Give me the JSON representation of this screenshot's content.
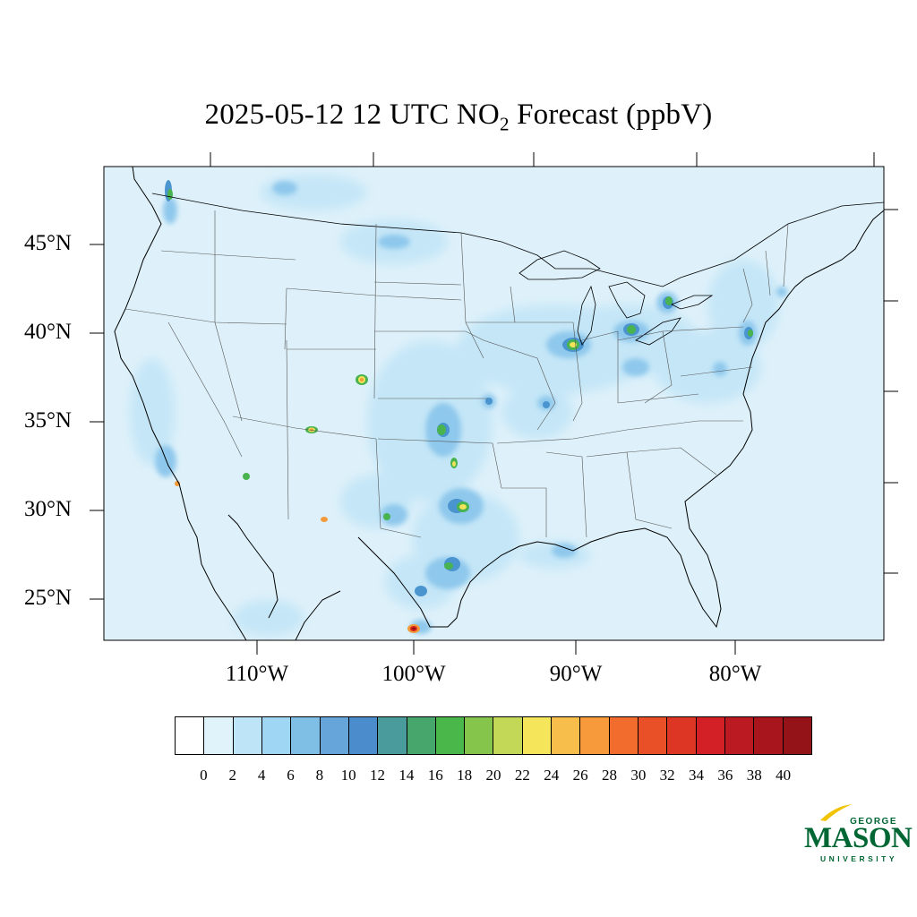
{
  "title": {
    "date": "2025-05-12",
    "hour": "12",
    "tz": "UTC",
    "species_main": "NO",
    "species_sub": "2",
    "label": "Forecast",
    "units": "(ppbV)"
  },
  "lat_labels": [
    "45°N",
    "40°N",
    "35°N",
    "30°N",
    "25°N"
  ],
  "lon_labels": [
    "110°W",
    "100°W",
    "90°W",
    "80°W"
  ],
  "colorbar": {
    "colors": [
      "#ffffff",
      "#e0f3fb",
      "#bde5f7",
      "#9fd6f3",
      "#7fbfe6",
      "#66a5da",
      "#4b8ccc",
      "#4a9b9b",
      "#46a66c",
      "#4ab74a",
      "#85c54c",
      "#c4d857",
      "#f5e55a",
      "#f7be4b",
      "#f79a3c",
      "#f26c2e",
      "#ea5028",
      "#de3625",
      "#d31f26",
      "#bb1a22",
      "#a8151d",
      "#931318"
    ],
    "labels": [
      "0",
      "2",
      "4",
      "6",
      "8",
      "10",
      "12",
      "14",
      "16",
      "18",
      "20",
      "22",
      "24",
      "26",
      "28",
      "30",
      "32",
      "34",
      "36",
      "38",
      "40"
    ]
  },
  "map_colors": {
    "background": "#def1fa",
    "low": "#c4e6f7",
    "mid": "#8ec8ec",
    "high": "#4a94cf",
    "green": "#48b34f",
    "yellow": "#f2e35a",
    "orange": "#f39a3b",
    "red": "#d7261f",
    "darkred": "#9b1116"
  },
  "logo": {
    "top": "GEORGE",
    "main": "MASON",
    "bottom": "UNIVERSITY"
  }
}
